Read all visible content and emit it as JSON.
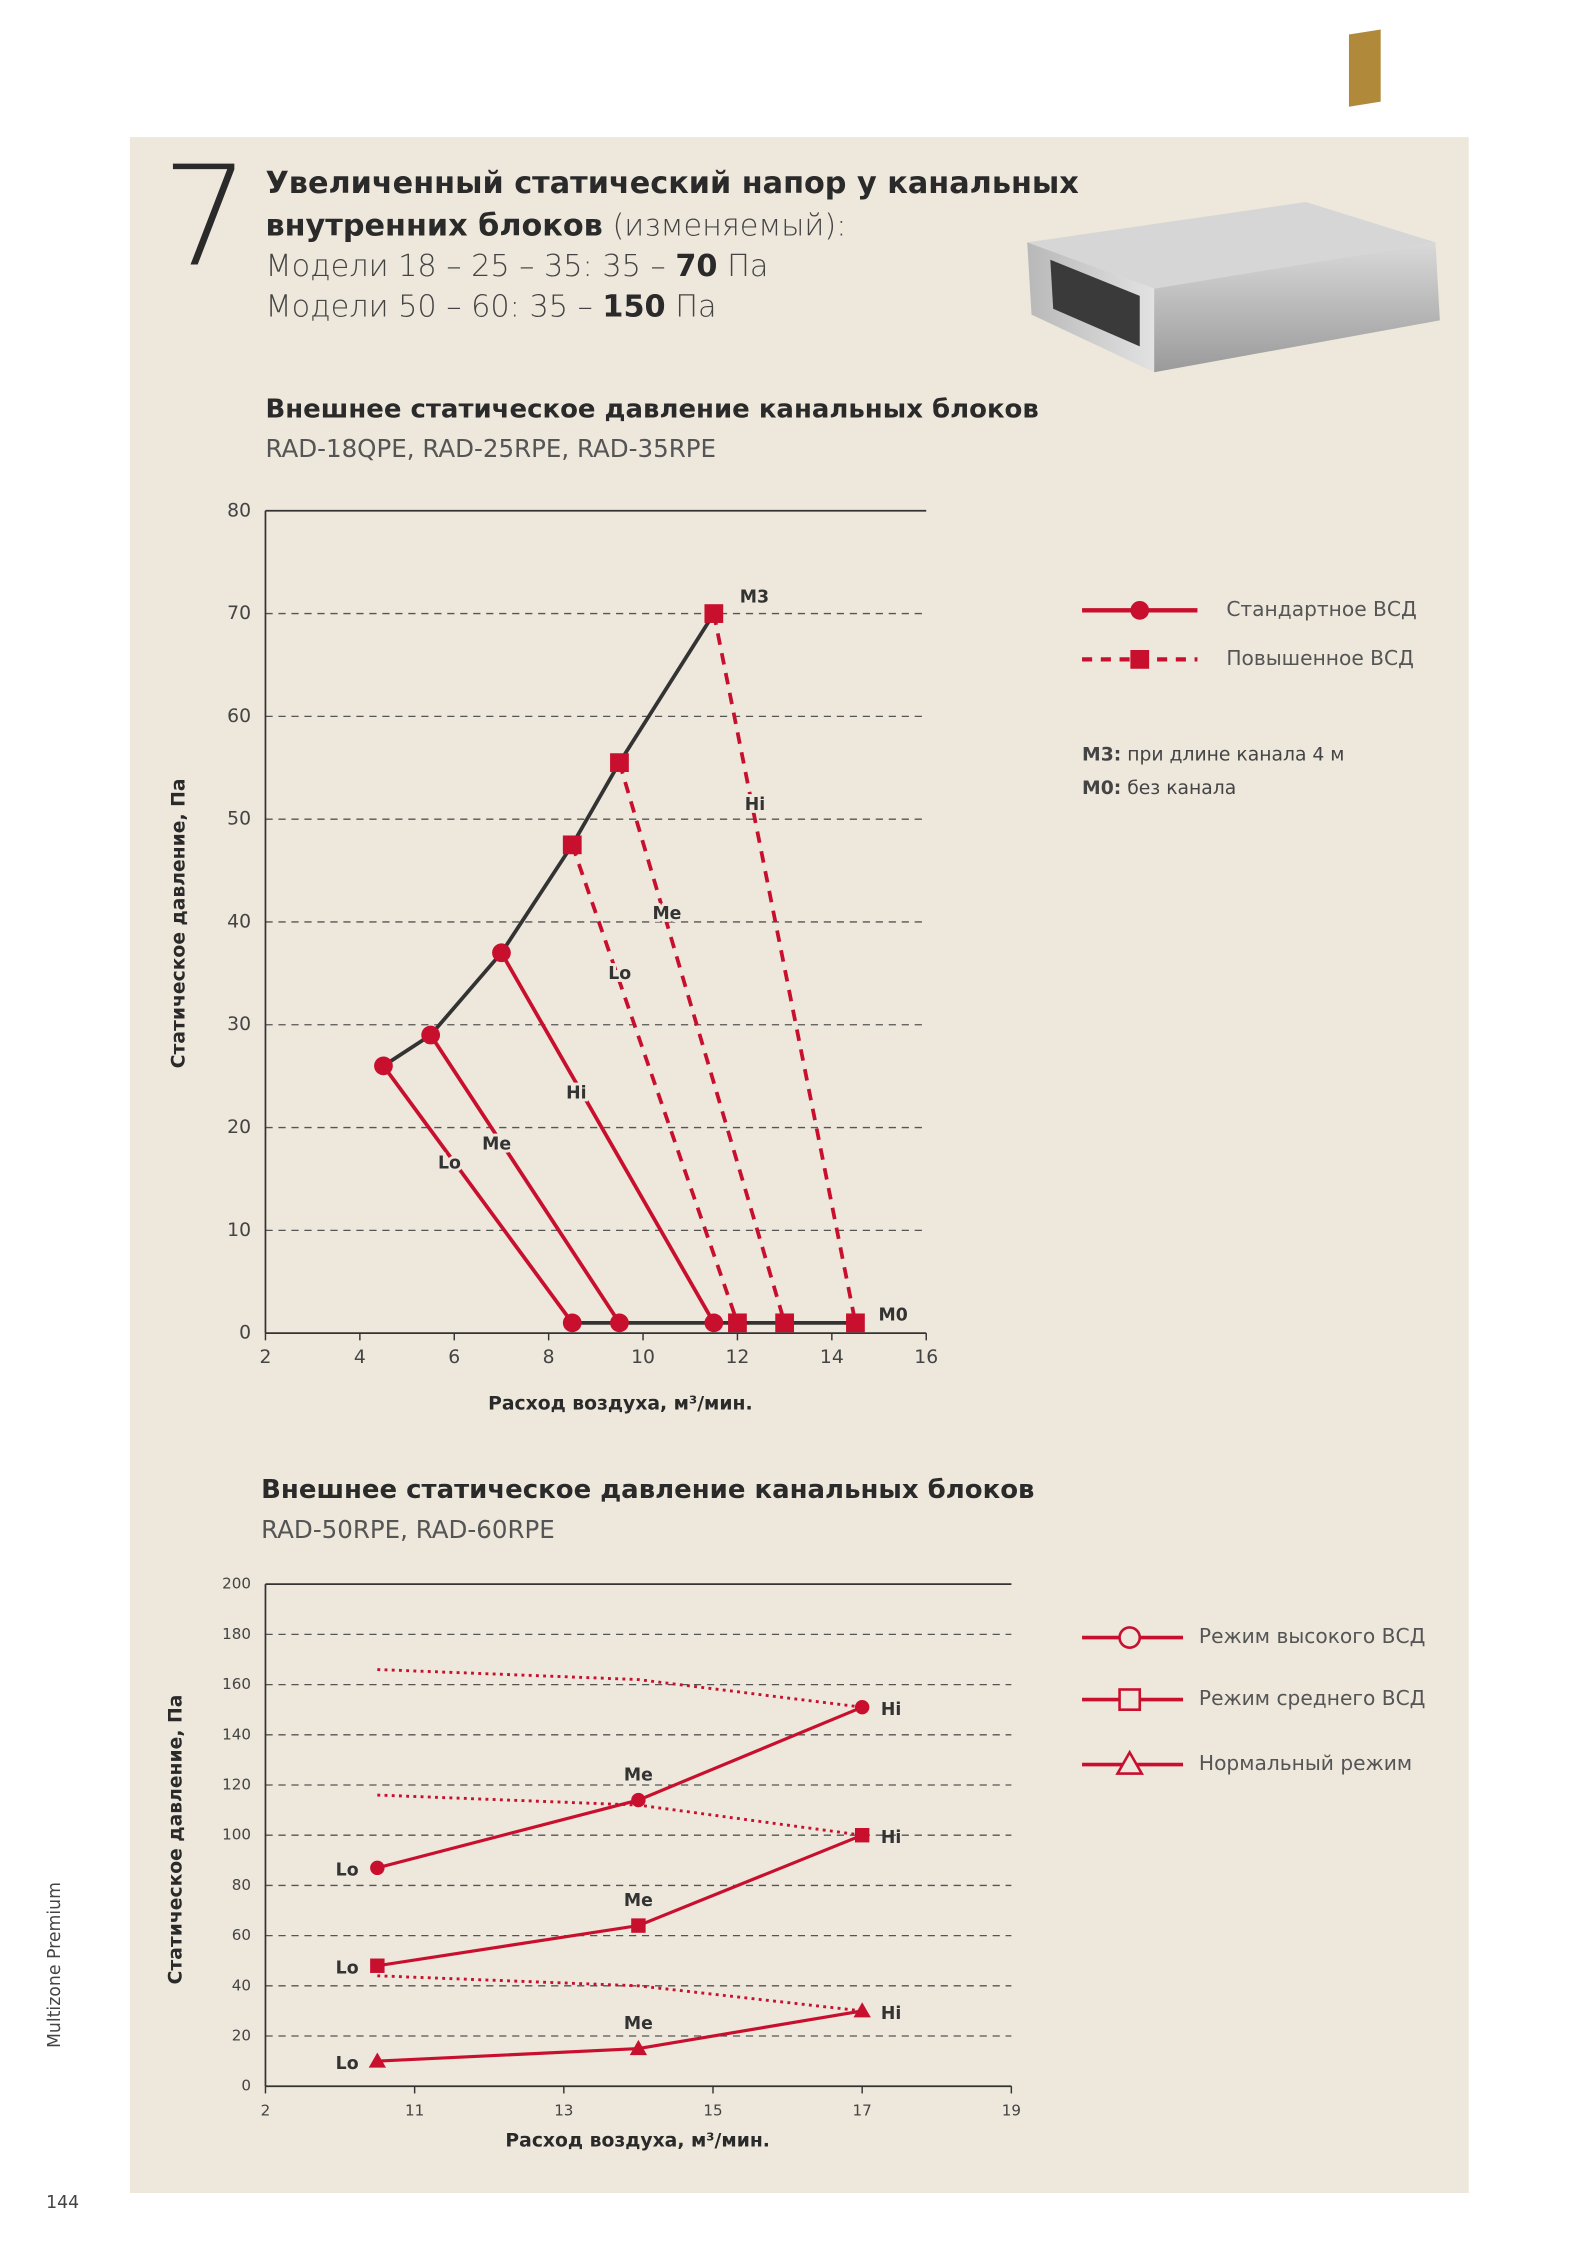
{
  "header": {
    "number": "7",
    "title_line1": "Увеличенный статический напор у канальных",
    "title_line2": "внутренних блоков",
    "title_note": "(изменяемый):",
    "models": [
      {
        "text": "Модели 18 – 25 – 35: 35 –",
        "bold": "70",
        "unit": "Па"
      },
      {
        "text": "Модели 50 – 60: 35 –",
        "bold": "150",
        "unit": "Па"
      }
    ]
  },
  "chart_data": [
    {
      "type": "line",
      "title": "Внешнее статическое давление канальных блоков",
      "subtitle": "RAD-18QPE, RAD-25RPE, RAD-35RPE",
      "x_label": "Расход воздуха, м³/мин.",
      "y_label": "Статическое давление, Па",
      "xlim": [
        2,
        16
      ],
      "xticks": [
        2,
        4,
        6,
        8,
        10,
        12,
        14,
        16
      ],
      "ylim": [
        0,
        80
      ],
      "yticks": [
        0,
        10,
        20,
        30,
        40,
        50,
        60,
        70,
        80
      ],
      "grid": true,
      "envelope_color": "#333333",
      "series": [
        {
          "name": "Стандартное ВСД",
          "color": "#c8102e",
          "marker": "circle",
          "dash": false,
          "lines": [
            {
              "label": "Lo",
              "x": [
                4.5,
                8.5
              ],
              "values": [
                26,
                1
              ]
            },
            {
              "label": "Me",
              "x": [
                5.5,
                9.5
              ],
              "values": [
                29,
                1
              ]
            },
            {
              "label": "Hi",
              "x": [
                7,
                11.5
              ],
              "values": [
                37,
                1
              ]
            }
          ]
        },
        {
          "name": "Повышенное ВСД",
          "color": "#c8102e",
          "marker": "square",
          "dash": true,
          "lines": [
            {
              "label": "Lo",
              "x": [
                8.5,
                12
              ],
              "values": [
                47.5,
                1
              ]
            },
            {
              "label": "Me",
              "x": [
                9.5,
                13
              ],
              "values": [
                55.5,
                1
              ]
            },
            {
              "label": "Hi",
              "x": [
                11.5,
                14.5
              ],
              "values": [
                70,
                1
              ]
            }
          ]
        }
      ],
      "top_label": "M3",
      "bottom_label": "M0",
      "notes": [
        {
          "key": "M3:",
          "text": "при длине канала 4 м"
        },
        {
          "key": "M0:",
          "text": "без канала"
        }
      ]
    },
    {
      "type": "line",
      "title": "Внешнее статическое давление канальных блоков",
      "subtitle": "RAD-50RPE, RAD-60RPE",
      "x_label": "Расход воздуха, м³/мин.",
      "y_label": "Статическое давление, Па",
      "xlim": [
        9,
        19
      ],
      "xticks": [
        {
          "value": 9,
          "label": "2"
        },
        11,
        13,
        15,
        17,
        19
      ],
      "ylim": [
        0,
        200
      ],
      "yticks": [
        0,
        20,
        40,
        60,
        80,
        100,
        120,
        140,
        160,
        180,
        200
      ],
      "grid": true,
      "x": [
        10.5,
        14,
        17
      ],
      "point_labels": [
        "Lo",
        "Me",
        "Hi"
      ],
      "series": [
        {
          "name": "Режим высокого ВСД",
          "color": "#c8102e",
          "marker": "circle",
          "values": [
            87,
            114,
            151
          ]
        },
        {
          "name": "Режим среднего ВСД",
          "color": "#c8102e",
          "marker": "square",
          "values": [
            48,
            64,
            100
          ]
        },
        {
          "name": "Нормальный режим",
          "color": "#c8102e",
          "marker": "triangle",
          "values": [
            10,
            15,
            30
          ]
        }
      ],
      "fan_curves": {
        "color": "#c8102e",
        "series": [
          [
            166,
            162,
            151
          ],
          [
            116,
            112,
            100
          ],
          [
            44,
            40,
            30
          ]
        ]
      }
    }
  ],
  "footer": {
    "side_text": "Multizone Premium",
    "page": "144"
  }
}
